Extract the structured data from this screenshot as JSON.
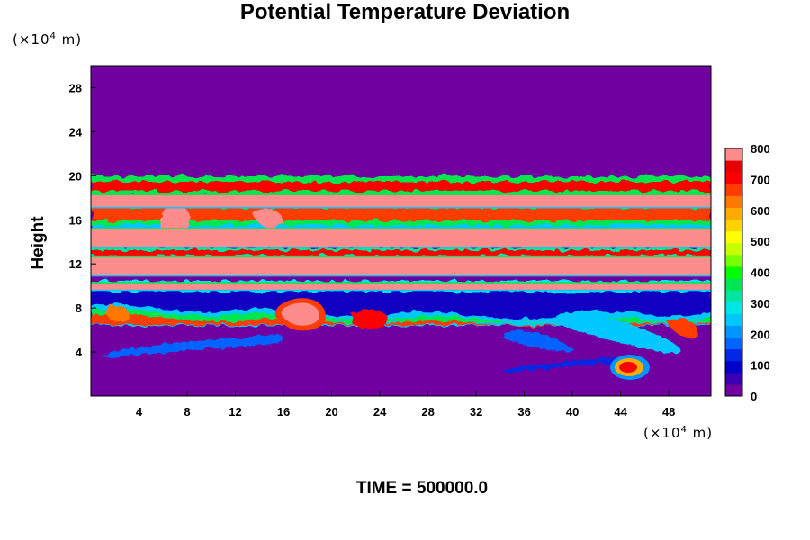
{
  "chart_data": {
    "type": "heatmap",
    "title": "Potential Temperature Deviation",
    "ylabel": "Height",
    "x_unit": {
      "prefix": "(×10",
      "exp": "4",
      "suffix": " m)"
    },
    "y_unit": {
      "prefix": "(×10",
      "exp": "4",
      "suffix": " m)"
    },
    "xlim": [
      0,
      51.5
    ],
    "ylim": [
      0,
      30
    ],
    "x_ticks": [
      4,
      8,
      12,
      16,
      20,
      24,
      28,
      32,
      36,
      40,
      44,
      48
    ],
    "y_ticks": [
      4,
      8,
      12,
      16,
      20,
      24,
      28
    ],
    "colorbar": {
      "ticks": [
        0,
        100,
        200,
        300,
        400,
        500,
        600,
        700,
        800
      ],
      "range": [
        0,
        800
      ],
      "colors": [
        "#7000a0",
        "#3c00b4",
        "#0000c8",
        "#0028e6",
        "#0064ff",
        "#0096ff",
        "#00c8ff",
        "#00e6e6",
        "#00e6a0",
        "#00e650",
        "#00ff00",
        "#78ff00",
        "#c8ff00",
        "#ffff00",
        "#ffd200",
        "#ffaa00",
        "#ff7800",
        "#ff3c00",
        "#ff0000",
        "#e60000",
        "#ff8c8c"
      ]
    },
    "layers": [
      {
        "y_top": 18.3,
        "y_bottom": 17.1,
        "x_start": 0,
        "x_end": 51.5
      },
      {
        "y_top": 15.2,
        "y_bottom": 13.5,
        "x_start": 0,
        "x_end": 51.5
      },
      {
        "y_top": 12.7,
        "y_bottom": 10.9,
        "x_start": 0,
        "x_end": 51.5
      },
      {
        "y_top": 10.3,
        "y_bottom": 9.6,
        "x_start": 0,
        "x_end": 51.5
      }
    ],
    "time_label": "TIME = 500000.0"
  }
}
